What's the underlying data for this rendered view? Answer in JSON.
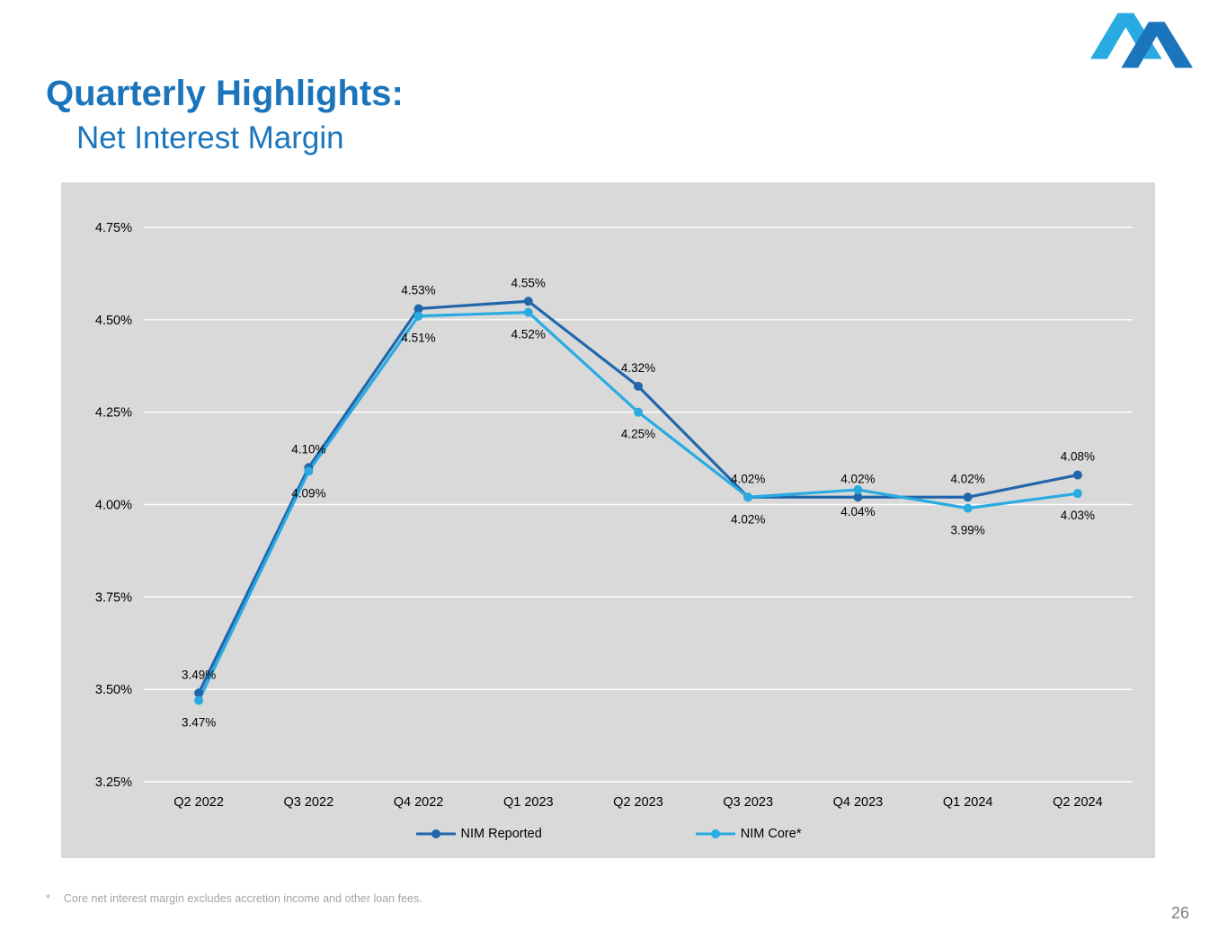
{
  "slide": {
    "title_line1": "Quarterly Highlights:",
    "title_line2": "Net Interest Margin",
    "footnote_marker": "*",
    "footnote_text": "Core net interest margin excludes accretion income and other loan fees.",
    "page_number": "26"
  },
  "colors": {
    "title_blue": "#1B75BC",
    "reported": "#2166AC",
    "core": "#29ABE2",
    "logo_light": "#29ABE2",
    "logo_dark": "#1B75BC",
    "chart_bg": "#D9D9D9",
    "gridline": "#FFFFFF",
    "axis_text": "#000000",
    "footnote_gray": "#A3A3A3",
    "page_number_gray": "#7F7F7F"
  },
  "chart_data": {
    "type": "line",
    "categories": [
      "Q2 2022",
      "Q3 2022",
      "Q4 2022",
      "Q1 2023",
      "Q2 2023",
      "Q3 2023",
      "Q4 2023",
      "Q1 2024",
      "Q2 2024"
    ],
    "series": [
      {
        "name": "NIM Reported",
        "color_key": "reported",
        "label_position": "above",
        "values": [
          3.49,
          4.1,
          4.53,
          4.55,
          4.32,
          4.02,
          4.02,
          4.02,
          4.08
        ]
      },
      {
        "name": "NIM Core*",
        "color_key": "core",
        "label_position": "below",
        "values": [
          3.47,
          4.09,
          4.51,
          4.52,
          4.25,
          4.02,
          4.04,
          3.99,
          4.03
        ]
      }
    ],
    "ylim": [
      3.25,
      4.75
    ],
    "ytick_step": 0.25,
    "ytick_labels": [
      "3.25%",
      "3.50%",
      "3.75%",
      "4.00%",
      "4.25%",
      "4.50%",
      "4.75%"
    ],
    "grid": true,
    "legend_position": "bottom",
    "xlabel": "",
    "ylabel": ""
  }
}
